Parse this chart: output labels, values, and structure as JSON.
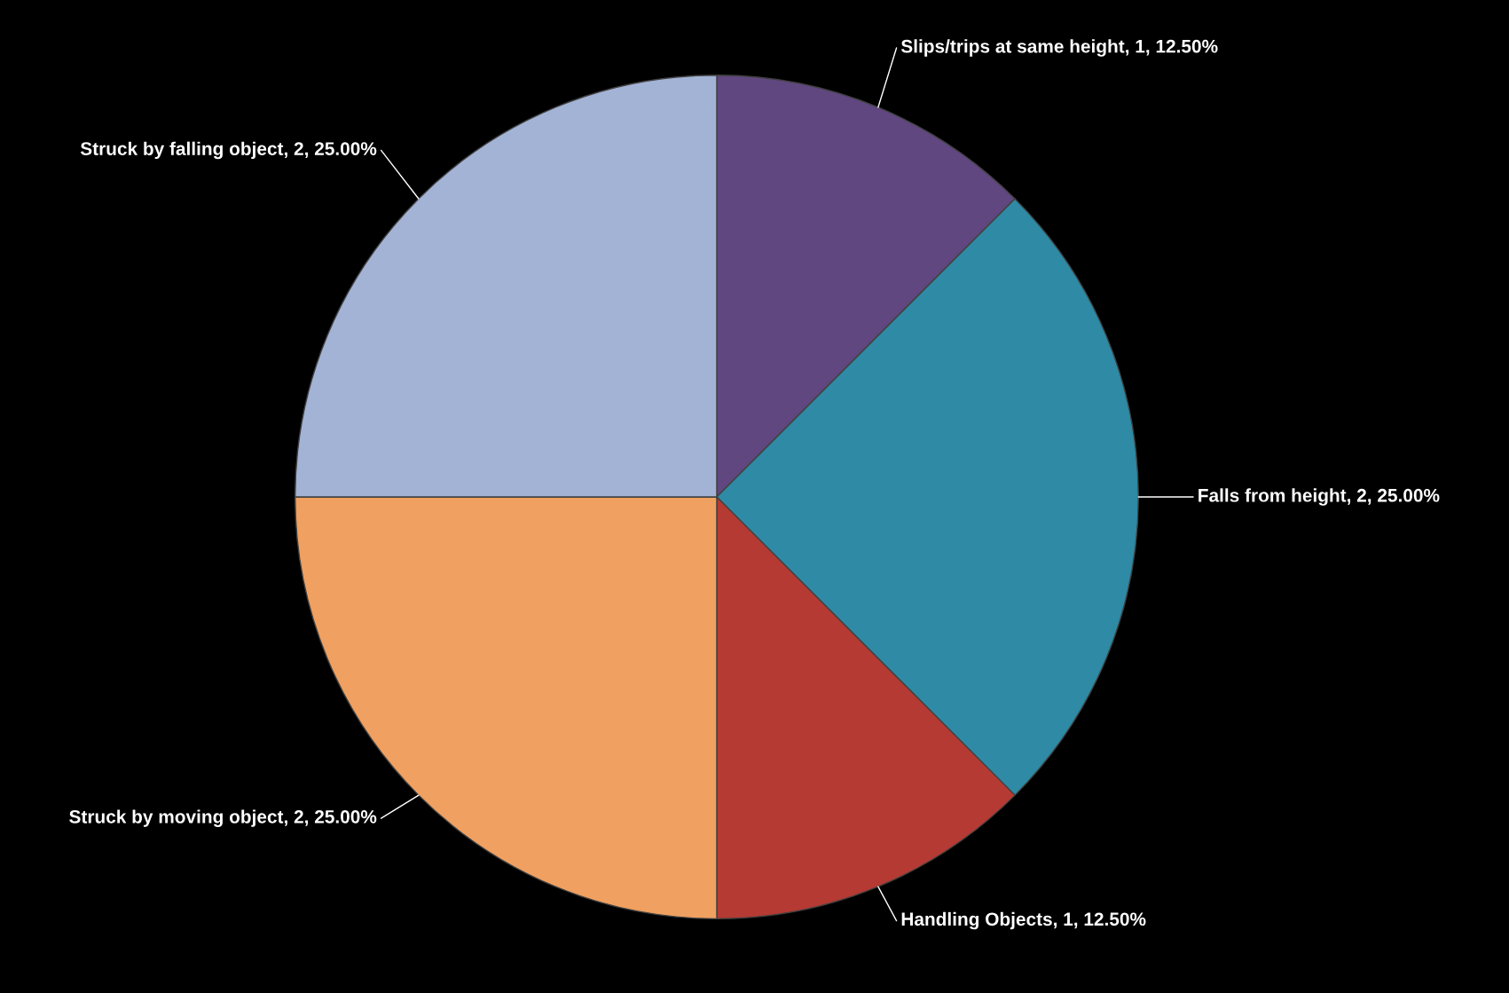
{
  "chart_data": {
    "type": "pie",
    "categories": [
      "Slips/trips at same height",
      "Falls from height",
      "Handling Objects",
      "Struck by moving object",
      "Struck by falling object"
    ],
    "values": [
      1,
      2,
      1,
      2,
      2
    ],
    "value_labels": [
      "1, 12.50%",
      "2, 25.00%",
      "1, 12.50%",
      "2, 25.00%",
      "2, 25.00%"
    ],
    "colors": [
      "#60477f",
      "#2e8aa5",
      "#b53a33",
      "#f0a060",
      "#a3b3d6"
    ],
    "legend": false
  }
}
